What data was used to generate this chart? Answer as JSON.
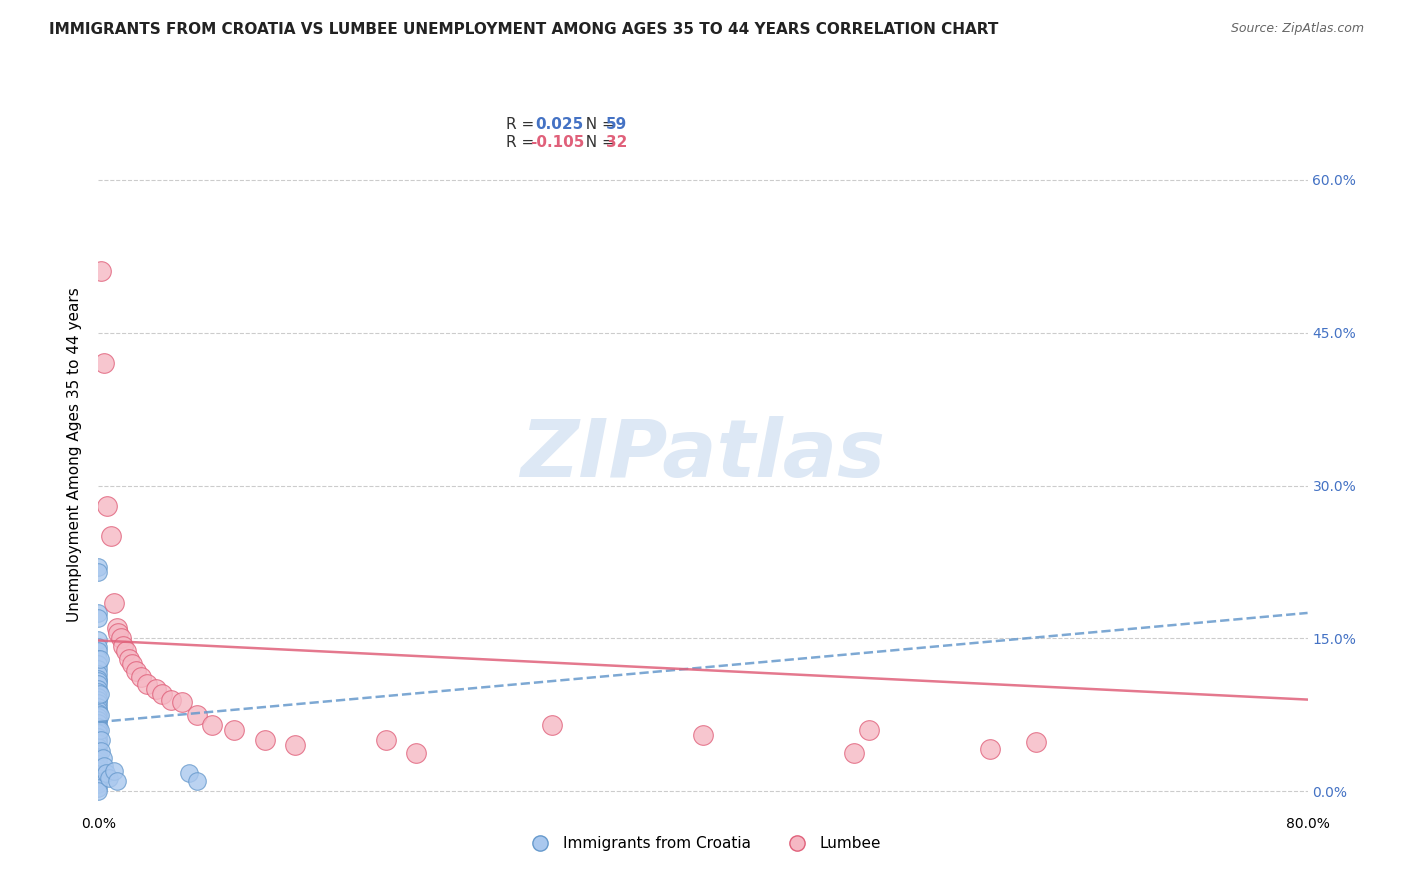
{
  "title": "IMMIGRANTS FROM CROATIA VS LUMBEE UNEMPLOYMENT AMONG AGES 35 TO 44 YEARS CORRELATION CHART",
  "source": "Source: ZipAtlas.com",
  "ylabel": "Unemployment Among Ages 35 to 44 years",
  "xlim": [
    0.0,
    0.8
  ],
  "ylim": [
    -0.02,
    0.68
  ],
  "yticks": [
    0.0,
    0.15,
    0.3,
    0.45,
    0.6
  ],
  "xticks": [
    0.0,
    0.1,
    0.2,
    0.3,
    0.4,
    0.5,
    0.6,
    0.7,
    0.8
  ],
  "xtick_labels": [
    "0.0%",
    "",
    "",
    "",
    "",
    "",
    "",
    "",
    "80.0%"
  ],
  "background_color": "#ffffff",
  "watermark_text": "ZIPatlas",
  "blue_color": "#aac8ee",
  "blue_edge": "#6699cc",
  "pink_color": "#f5b8c4",
  "pink_edge": "#e0607a",
  "blue_scatter": [
    [
      0.0,
      0.22
    ],
    [
      0.0,
      0.215
    ],
    [
      0.0,
      0.175
    ],
    [
      0.0,
      0.17
    ],
    [
      0.0,
      0.148
    ],
    [
      0.0,
      0.142
    ],
    [
      0.0,
      0.138
    ],
    [
      0.0,
      0.13
    ],
    [
      0.0,
      0.125
    ],
    [
      0.0,
      0.12
    ],
    [
      0.0,
      0.115
    ],
    [
      0.0,
      0.11
    ],
    [
      0.0,
      0.108
    ],
    [
      0.0,
      0.105
    ],
    [
      0.0,
      0.1
    ],
    [
      0.0,
      0.097
    ],
    [
      0.0,
      0.093
    ],
    [
      0.0,
      0.09
    ],
    [
      0.0,
      0.087
    ],
    [
      0.0,
      0.083
    ],
    [
      0.0,
      0.08
    ],
    [
      0.0,
      0.077
    ],
    [
      0.0,
      0.073
    ],
    [
      0.0,
      0.07
    ],
    [
      0.0,
      0.067
    ],
    [
      0.0,
      0.063
    ],
    [
      0.0,
      0.06
    ],
    [
      0.0,
      0.057
    ],
    [
      0.0,
      0.053
    ],
    [
      0.0,
      0.05
    ],
    [
      0.0,
      0.047
    ],
    [
      0.0,
      0.043
    ],
    [
      0.0,
      0.04
    ],
    [
      0.0,
      0.037
    ],
    [
      0.0,
      0.033
    ],
    [
      0.0,
      0.03
    ],
    [
      0.0,
      0.027
    ],
    [
      0.0,
      0.023
    ],
    [
      0.0,
      0.02
    ],
    [
      0.0,
      0.017
    ],
    [
      0.0,
      0.013
    ],
    [
      0.0,
      0.01
    ],
    [
      0.0,
      0.007
    ],
    [
      0.0,
      0.003
    ],
    [
      0.0,
      0.0
    ],
    [
      0.001,
      0.13
    ],
    [
      0.001,
      0.095
    ],
    [
      0.001,
      0.075
    ],
    [
      0.001,
      0.06
    ],
    [
      0.002,
      0.05
    ],
    [
      0.002,
      0.04
    ],
    [
      0.003,
      0.033
    ],
    [
      0.004,
      0.025
    ],
    [
      0.005,
      0.018
    ],
    [
      0.007,
      0.013
    ],
    [
      0.01,
      0.02
    ],
    [
      0.012,
      0.01
    ],
    [
      0.06,
      0.018
    ],
    [
      0.065,
      0.01
    ]
  ],
  "pink_scatter": [
    [
      0.002,
      0.51
    ],
    [
      0.004,
      0.42
    ],
    [
      0.006,
      0.28
    ],
    [
      0.008,
      0.25
    ],
    [
      0.01,
      0.185
    ],
    [
      0.012,
      0.16
    ],
    [
      0.013,
      0.155
    ],
    [
      0.015,
      0.15
    ],
    [
      0.016,
      0.143
    ],
    [
      0.018,
      0.138
    ],
    [
      0.02,
      0.13
    ],
    [
      0.022,
      0.125
    ],
    [
      0.025,
      0.118
    ],
    [
      0.028,
      0.112
    ],
    [
      0.032,
      0.105
    ],
    [
      0.038,
      0.1
    ],
    [
      0.042,
      0.095
    ],
    [
      0.048,
      0.09
    ],
    [
      0.055,
      0.088
    ],
    [
      0.065,
      0.075
    ],
    [
      0.075,
      0.065
    ],
    [
      0.09,
      0.06
    ],
    [
      0.11,
      0.05
    ],
    [
      0.13,
      0.045
    ],
    [
      0.19,
      0.05
    ],
    [
      0.21,
      0.038
    ],
    [
      0.3,
      0.065
    ],
    [
      0.4,
      0.055
    ],
    [
      0.5,
      0.038
    ],
    [
      0.51,
      0.06
    ],
    [
      0.59,
      0.042
    ],
    [
      0.62,
      0.048
    ]
  ],
  "blue_trend_x": [
    0.0,
    0.8
  ],
  "blue_trend_y": [
    0.068,
    0.175
  ],
  "pink_trend_x": [
    0.0,
    0.8
  ],
  "pink_trend_y": [
    0.148,
    0.09
  ],
  "grid_color": "#cccccc",
  "title_fontsize": 11,
  "axis_label_fontsize": 11,
  "tick_fontsize": 10,
  "right_tick_color": "#4472c4",
  "watermark_color": "#dde8f5"
}
